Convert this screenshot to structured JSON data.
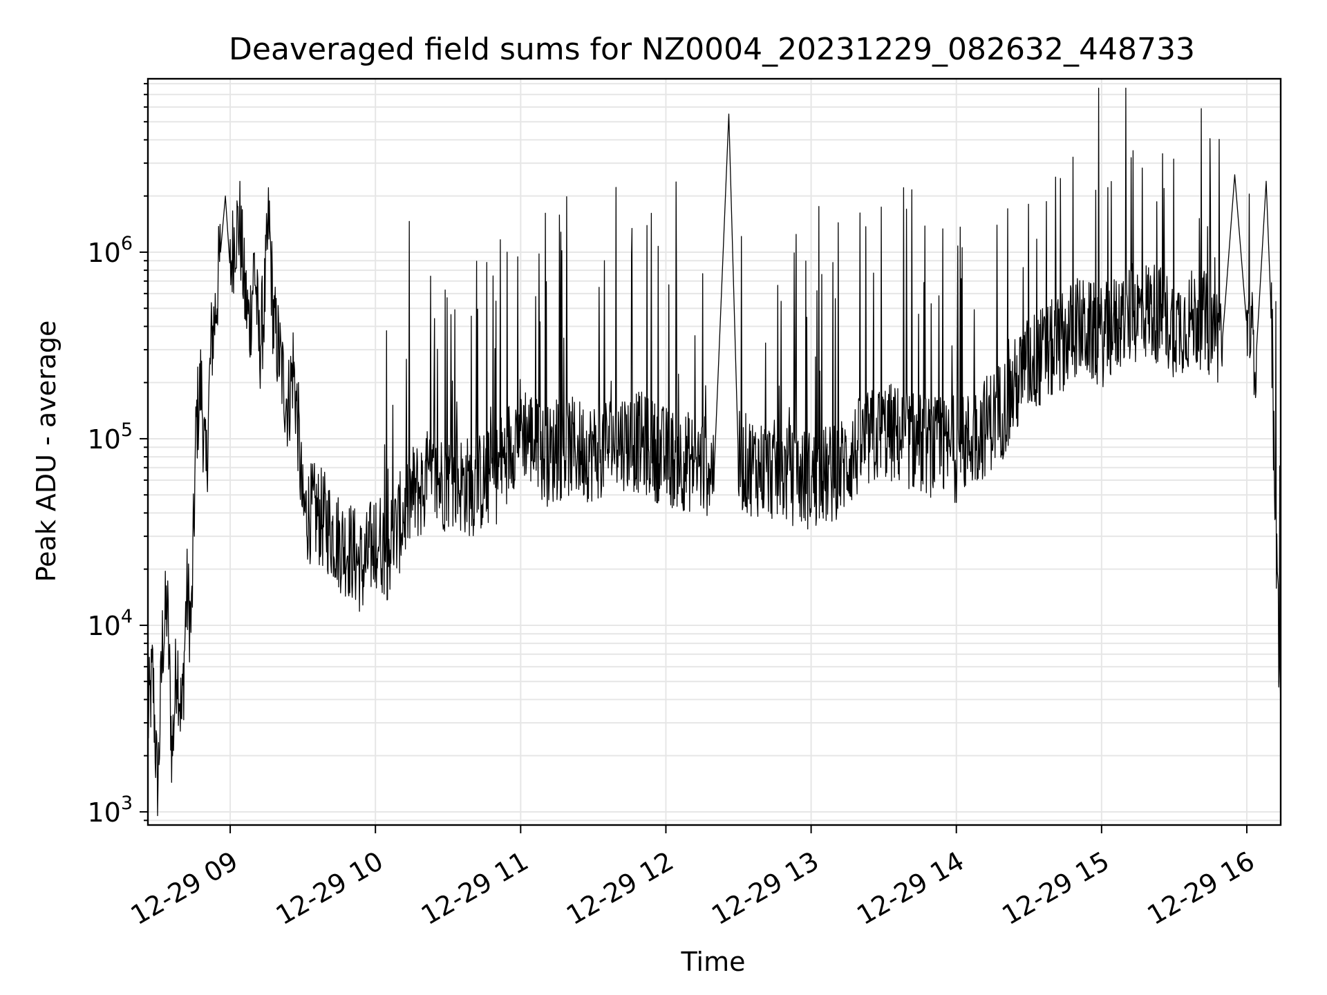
{
  "chart_data": {
    "type": "line",
    "title": "Deaveraged field sums for NZ0004_20231229_082632_448733",
    "xlabel": "Time",
    "ylabel": "Peak ADU - average",
    "x_axis": {
      "kind": "datetime",
      "range": [
        "2023-12-29 08:26",
        "2023-12-29 16:14"
      ],
      "ticks": [
        "2023-12-29 09:00",
        "2023-12-29 10:00",
        "2023-12-29 11:00",
        "2023-12-29 12:00",
        "2023-12-29 13:00",
        "2023-12-29 14:00",
        "2023-12-29 15:00",
        "2023-12-29 16:00"
      ],
      "tick_labels": [
        "12-29 09",
        "12-29 10",
        "12-29 11",
        "12-29 12",
        "12-29 13",
        "12-29 14",
        "12-29 15",
        "12-29 16"
      ],
      "tick_rotation_deg": 30
    },
    "y_axis": {
      "scale": "log",
      "range": [
        850,
        8500000
      ],
      "ticks": [
        {
          "value": 1000,
          "base": "10",
          "exp": "3"
        },
        {
          "value": 10000,
          "base": "10",
          "exp": "4"
        },
        {
          "value": 100000,
          "base": "10",
          "exp": "5"
        },
        {
          "value": 1000000,
          "base": "10",
          "exp": "6"
        }
      ]
    },
    "grid": true,
    "legend": "none",
    "line_color": "#000000",
    "series": [
      {
        "values_note": "",
        "x": [
          "08:26",
          "08:28",
          "08:30",
          "08:32",
          "08:34",
          "08:36",
          "08:38",
          "08:40",
          "08:42",
          "08:44",
          "08:46",
          "08:48",
          "08:50",
          "08:52",
          "08:54",
          "08:56",
          "08:58",
          "09:00",
          "09:02",
          "09:04",
          "09:06",
          "09:08",
          "09:10",
          "09:12",
          "09:14",
          "09:16",
          "09:18",
          "09:20",
          "09:22",
          "09:24",
          "09:26",
          "09:28",
          "09:30",
          "09:35",
          "09:40",
          "09:45",
          "09:50",
          "09:55",
          "10:00",
          "10:05",
          "10:10",
          "10:15",
          "10:20",
          "10:30",
          "10:40",
          "10:50",
          "11:00",
          "11:10",
          "11:20",
          "11:30",
          "11:40",
          "11:50",
          "12:00",
          "12:10",
          "12:20",
          "12:26",
          "12:30",
          "12:40",
          "12:50",
          "13:00",
          "13:10",
          "13:20",
          "13:30",
          "13:40",
          "13:50",
          "14:00",
          "14:10",
          "14:20",
          "14:30",
          "14:40",
          "14:50",
          "15:00",
          "15:10",
          "15:20",
          "15:30",
          "15:40",
          "15:50",
          "15:55",
          "16:00",
          "16:04",
          "16:08",
          "16:10",
          "16:12",
          "16:14"
        ],
        "y": [
          3000,
          5500,
          1200,
          8000,
          13000,
          2000,
          7000,
          3000,
          15000,
          10000,
          120000,
          200000,
          60000,
          300000,
          500000,
          1000000,
          2000000,
          800000,
          1300000,
          1400000,
          600000,
          400000,
          900000,
          300000,
          500000,
          1500000,
          400000,
          300000,
          200000,
          150000,
          250000,
          120000,
          40000,
          40000,
          35000,
          28000,
          25000,
          20000,
          30000,
          25000,
          35000,
          50000,
          55000,
          60000,
          55000,
          65000,
          120000,
          80000,
          90000,
          85000,
          100000,
          95000,
          80000,
          75000,
          70000,
          5500000,
          75000,
          70000,
          65000,
          60000,
          65000,
          90000,
          110000,
          100000,
          90000,
          85000,
          110000,
          150000,
          250000,
          300000,
          400000,
          350000,
          450000,
          500000,
          400000,
          450000,
          350000,
          2600000,
          400000,
          300000,
          2400000,
          500000,
          30000,
          3700
        ]
      }
    ]
  }
}
